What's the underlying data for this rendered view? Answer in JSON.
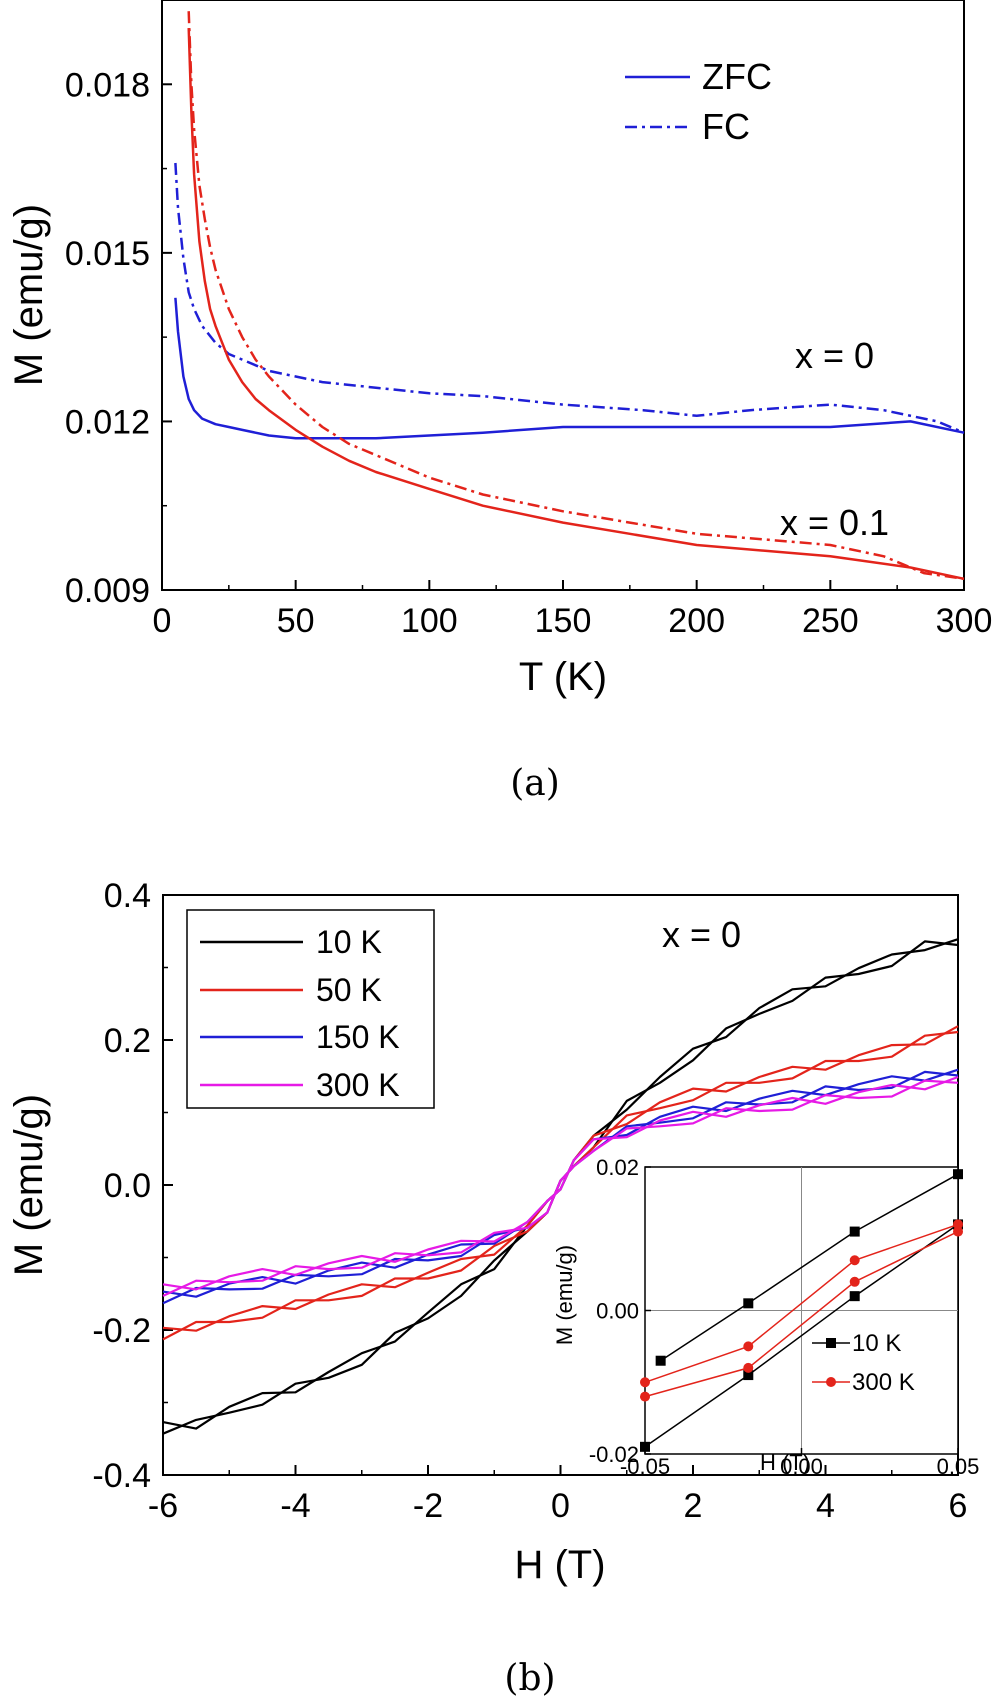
{
  "chart_data": [
    {
      "panel": "a",
      "type": "line",
      "caption": "(a)",
      "xlabel": "T (K)",
      "ylabel": "M (emu/g)",
      "xlim": [
        0,
        300
      ],
      "ylim": [
        0.009,
        0.0195
      ],
      "xticks": [
        0,
        50,
        100,
        150,
        200,
        250,
        300
      ],
      "xtick_labels": [
        "0",
        "50",
        "100",
        "150",
        "200",
        "250",
        "300"
      ],
      "yticks": [
        0.009,
        0.012,
        0.015,
        0.018
      ],
      "ytick_labels": [
        "0.009",
        "0.012",
        "0.015",
        "0.018"
      ],
      "legend": [
        "ZFC",
        "FC"
      ],
      "annotations": [
        {
          "text": "x = 0",
          "x": 250,
          "y": 0.0131
        },
        {
          "text": "x = 0.1",
          "x": 260,
          "y": 0.0102
        }
      ],
      "series": [
        {
          "name": "x = 0 ZFC",
          "color": "#1f1fd6",
          "dash": "solid",
          "x": [
            5,
            6,
            8,
            10,
            12,
            15,
            20,
            25,
            30,
            40,
            50,
            60,
            80,
            100,
            120,
            150,
            180,
            200,
            220,
            250,
            280,
            300
          ],
          "y": [
            0.0142,
            0.0136,
            0.0128,
            0.0124,
            0.0122,
            0.01205,
            0.01195,
            0.0119,
            0.01185,
            0.01175,
            0.0117,
            0.0117,
            0.0117,
            0.01175,
            0.0118,
            0.0119,
            0.0119,
            0.0119,
            0.0119,
            0.0119,
            0.012,
            0.0118
          ]
        },
        {
          "name": "x = 0 FC",
          "color": "#1f1fd6",
          "dash": "dashdot",
          "x": [
            5,
            6,
            8,
            10,
            12,
            15,
            20,
            25,
            30,
            40,
            50,
            60,
            80,
            100,
            120,
            150,
            180,
            200,
            220,
            250,
            270,
            290,
            300
          ],
          "y": [
            0.0166,
            0.0158,
            0.0149,
            0.0143,
            0.014,
            0.0137,
            0.0134,
            0.0132,
            0.0131,
            0.0129,
            0.0128,
            0.0127,
            0.0126,
            0.0125,
            0.01245,
            0.0123,
            0.0122,
            0.0121,
            0.0122,
            0.0123,
            0.0122,
            0.012,
            0.0118
          ]
        },
        {
          "name": "x = 0.1 ZFC",
          "color": "#e3241b",
          "dash": "solid",
          "x": [
            10,
            11,
            12,
            14,
            16,
            18,
            20,
            25,
            30,
            35,
            40,
            50,
            60,
            70,
            80,
            100,
            120,
            150,
            175,
            200,
            250,
            280,
            300
          ],
          "y": [
            0.019,
            0.0175,
            0.0164,
            0.0152,
            0.0145,
            0.014,
            0.0137,
            0.0131,
            0.0127,
            0.0124,
            0.0122,
            0.01185,
            0.01155,
            0.0113,
            0.0111,
            0.0108,
            0.0105,
            0.0102,
            0.01,
            0.0098,
            0.0096,
            0.0094,
            0.0092
          ]
        },
        {
          "name": "x = 0.1 FC",
          "color": "#e3241b",
          "dash": "dashdot",
          "x": [
            10,
            11,
            12,
            14,
            16,
            18,
            20,
            25,
            30,
            35,
            40,
            50,
            60,
            70,
            80,
            100,
            120,
            150,
            175,
            200,
            250,
            270,
            285,
            300
          ],
          "y": [
            0.0193,
            0.018,
            0.0172,
            0.0162,
            0.0156,
            0.0151,
            0.0147,
            0.014,
            0.0135,
            0.0131,
            0.0128,
            0.0123,
            0.0119,
            0.0116,
            0.0114,
            0.011,
            0.0107,
            0.0104,
            0.0102,
            0.01,
            0.0098,
            0.0096,
            0.0093,
            0.0092
          ]
        }
      ]
    },
    {
      "panel": "b",
      "type": "line",
      "caption": "(b)",
      "xlabel": "H (T)",
      "ylabel": "M (emu/g)",
      "xlim": [
        -6,
        6
      ],
      "ylim": [
        -0.4,
        0.4
      ],
      "xticks": [
        -6,
        -4,
        -2,
        0,
        2,
        4,
        6
      ],
      "xtick_labels": [
        "-6",
        "-4",
        "-2",
        "0",
        "2",
        "4",
        "6"
      ],
      "yticks": [
        -0.4,
        -0.2,
        0.0,
        0.2,
        0.4
      ],
      "ytick_labels": [
        "-0.4",
        "-0.2",
        "0.0",
        "0.2",
        "0.4"
      ],
      "annotation": "x = 0",
      "legend": [
        "10 K",
        "50 K",
        "150 K",
        "300 K"
      ],
      "series": [
        {
          "name": "10 K",
          "color": "#000000",
          "x": [
            -6,
            -5.5,
            -5,
            -4.5,
            -4,
            -3.5,
            -3,
            -2.5,
            -2,
            -1.5,
            -1,
            -0.5,
            -0.2,
            0,
            0.2,
            0.5,
            1,
            1.5,
            2,
            2.5,
            3,
            3.5,
            4,
            4.5,
            5,
            5.5,
            6
          ],
          "y": [
            -0.335,
            -0.33,
            -0.31,
            -0.295,
            -0.28,
            -0.262,
            -0.24,
            -0.21,
            -0.18,
            -0.145,
            -0.11,
            -0.06,
            -0.03,
            0.0,
            0.03,
            0.06,
            0.11,
            0.145,
            0.18,
            0.21,
            0.24,
            0.262,
            0.28,
            0.295,
            0.31,
            0.33,
            0.335
          ]
        },
        {
          "name": "50 K",
          "color": "#e3241b",
          "x": [
            -6,
            -5.5,
            -5,
            -4.5,
            -4,
            -3.5,
            -3,
            -2.5,
            -2,
            -1.5,
            -1,
            -0.5,
            -0.2,
            0,
            0.2,
            0.5,
            1,
            1.5,
            2,
            2.5,
            3,
            3.5,
            4,
            4.5,
            5,
            5.5,
            6
          ],
          "y": [
            -0.205,
            -0.195,
            -0.185,
            -0.175,
            -0.165,
            -0.155,
            -0.145,
            -0.135,
            -0.125,
            -0.11,
            -0.09,
            -0.06,
            -0.03,
            0.0,
            0.03,
            0.06,
            0.09,
            0.11,
            0.125,
            0.135,
            0.145,
            0.155,
            0.165,
            0.175,
            0.185,
            0.2,
            0.215
          ]
        },
        {
          "name": "150 K",
          "color": "#1f1fd6",
          "x": [
            -6,
            -5.5,
            -5,
            -4.5,
            -4,
            -3.5,
            -3,
            -2.5,
            -2,
            -1.5,
            -1,
            -0.5,
            -0.2,
            0,
            0.2,
            0.5,
            1,
            1.5,
            2,
            2.5,
            3,
            3.5,
            4,
            4.5,
            5,
            5.5,
            6
          ],
          "y": [
            -0.155,
            -0.148,
            -0.14,
            -0.135,
            -0.13,
            -0.122,
            -0.115,
            -0.108,
            -0.1,
            -0.09,
            -0.075,
            -0.055,
            -0.03,
            0.0,
            0.03,
            0.055,
            0.075,
            0.09,
            0.1,
            0.108,
            0.115,
            0.122,
            0.13,
            0.135,
            0.142,
            0.15,
            0.155
          ]
        },
        {
          "name": "300 K",
          "color": "#e61ae6",
          "x": [
            -6,
            -5.5,
            -5,
            -4.5,
            -4,
            -3.5,
            -3,
            -2.5,
            -2,
            -1.5,
            -1,
            -0.5,
            -0.2,
            0,
            0.2,
            0.5,
            1,
            1.5,
            2,
            2.5,
            3,
            3.5,
            4,
            4.5,
            5,
            5.5,
            6
          ],
          "y": [
            -0.145,
            -0.138,
            -0.13,
            -0.124,
            -0.118,
            -0.112,
            -0.106,
            -0.1,
            -0.093,
            -0.085,
            -0.072,
            -0.055,
            -0.03,
            0.0,
            0.03,
            0.055,
            0.072,
            0.085,
            0.093,
            0.1,
            0.106,
            0.112,
            0.118,
            0.124,
            0.13,
            0.138,
            0.145
          ]
        }
      ],
      "inset": {
        "xlabel": "H (T)",
        "ylabel": "M (emu/g)",
        "xlim": [
          -0.05,
          0.05
        ],
        "ylim": [
          -0.02,
          0.02
        ],
        "xticks": [
          -0.05,
          0.0,
          0.05
        ],
        "xtick_labels": [
          "-0.05",
          "0.00",
          "0.05"
        ],
        "yticks": [
          -0.02,
          0.0,
          0.02
        ],
        "ytick_labels": [
          "-0.02",
          "0.00",
          "0.02"
        ],
        "legend": [
          "10 K",
          "300 K"
        ],
        "series": [
          {
            "name": "10 K branch 1",
            "color": "#000000",
            "marker": "square",
            "x": [
              -0.05,
              -0.017,
              0.017,
              0.05
            ],
            "y": [
              -0.019,
              -0.009,
              0.002,
              0.012
            ]
          },
          {
            "name": "10 K branch 2",
            "color": "#000000",
            "marker": "square",
            "x": [
              -0.045,
              -0.017,
              0.017,
              0.05
            ],
            "y": [
              -0.007,
              0.001,
              0.011,
              0.019
            ]
          },
          {
            "name": "300 K branch 1",
            "color": "#e3241b",
            "marker": "circle",
            "x": [
              -0.05,
              -0.017,
              0.017,
              0.05
            ],
            "y": [
              -0.012,
              -0.008,
              0.004,
              0.011
            ]
          },
          {
            "name": "300 K branch 2",
            "color": "#e3241b",
            "marker": "circle",
            "x": [
              -0.05,
              -0.017,
              0.017,
              0.05
            ],
            "y": [
              -0.01,
              -0.005,
              0.007,
              0.012
            ]
          }
        ]
      }
    }
  ]
}
